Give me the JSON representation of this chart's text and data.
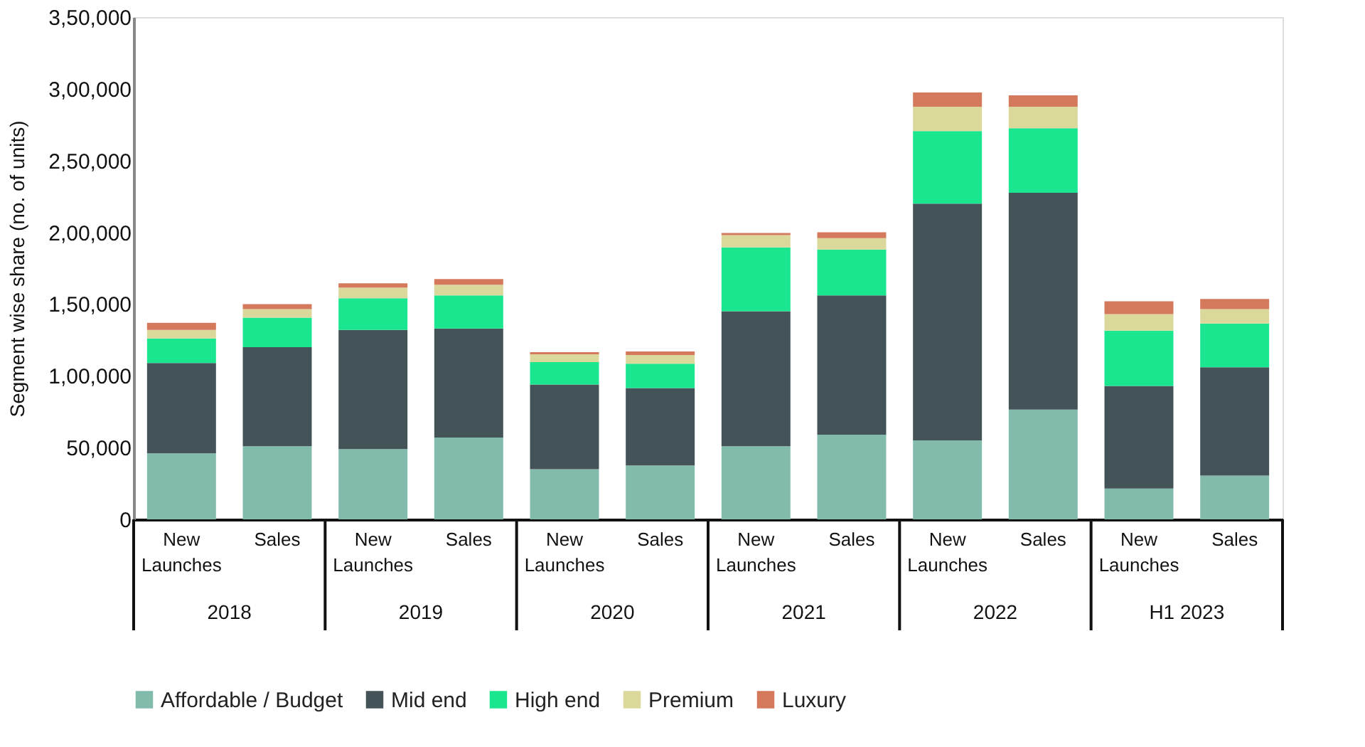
{
  "chart_data": {
    "type": "bar",
    "stacked": true,
    "ylabel": "Segment wise share (no. of units)",
    "categories": [
      "New Launches",
      "Sales",
      "New Launches",
      "Sales",
      "New Launches",
      "Sales",
      "New Launches",
      "Sales",
      "New Launches",
      "Sales",
      "New Launches",
      "Sales"
    ],
    "annotations": [
      "2018",
      "2019",
      "2020",
      "2021",
      "2022",
      "H1 2023"
    ],
    "series": [
      {
        "name": "Affordable / Budget",
        "color": "#82bbab",
        "values": [
          46000,
          51000,
          49000,
          57000,
          35000,
          37500,
          51000,
          59000,
          55000,
          76500,
          21500,
          30500
        ]
      },
      {
        "name": "Mid end",
        "color": "#445357",
        "values": [
          63000,
          69000,
          83000,
          76000,
          59000,
          54000,
          94000,
          97000,
          165000,
          151000,
          71500,
          75500
        ]
      },
      {
        "name": "High end",
        "color": "#19e68f",
        "values": [
          17000,
          20500,
          22000,
          23000,
          15500,
          17000,
          44500,
          32000,
          50500,
          45000,
          38500,
          30500
        ]
      },
      {
        "name": "Premium",
        "color": "#dbd89c",
        "values": [
          6000,
          6000,
          7500,
          7500,
          5500,
          6000,
          8500,
          8000,
          17000,
          15000,
          11500,
          10000
        ]
      },
      {
        "name": "Luxury",
        "color": "#d4795c",
        "values": [
          5000,
          3500,
          3000,
          4000,
          1500,
          2500,
          1500,
          4000,
          10000,
          8000,
          9000,
          7000
        ]
      }
    ],
    "ylim": [
      0,
      350000
    ],
    "yticks": [
      0,
      {
        "value": 50000,
        "label": "50,000"
      },
      {
        "value": 100000,
        "label": "1,00,000"
      },
      {
        "value": 150000,
        "label": "1,50,000"
      },
      {
        "value": 200000,
        "label": "2,00,000"
      },
      {
        "value": 250000,
        "label": "2,50,000"
      },
      {
        "value": 300000,
        "label": "3,00,000"
      },
      {
        "value": 350000,
        "label": "3,50,000"
      }
    ],
    "legend": "bottom"
  }
}
